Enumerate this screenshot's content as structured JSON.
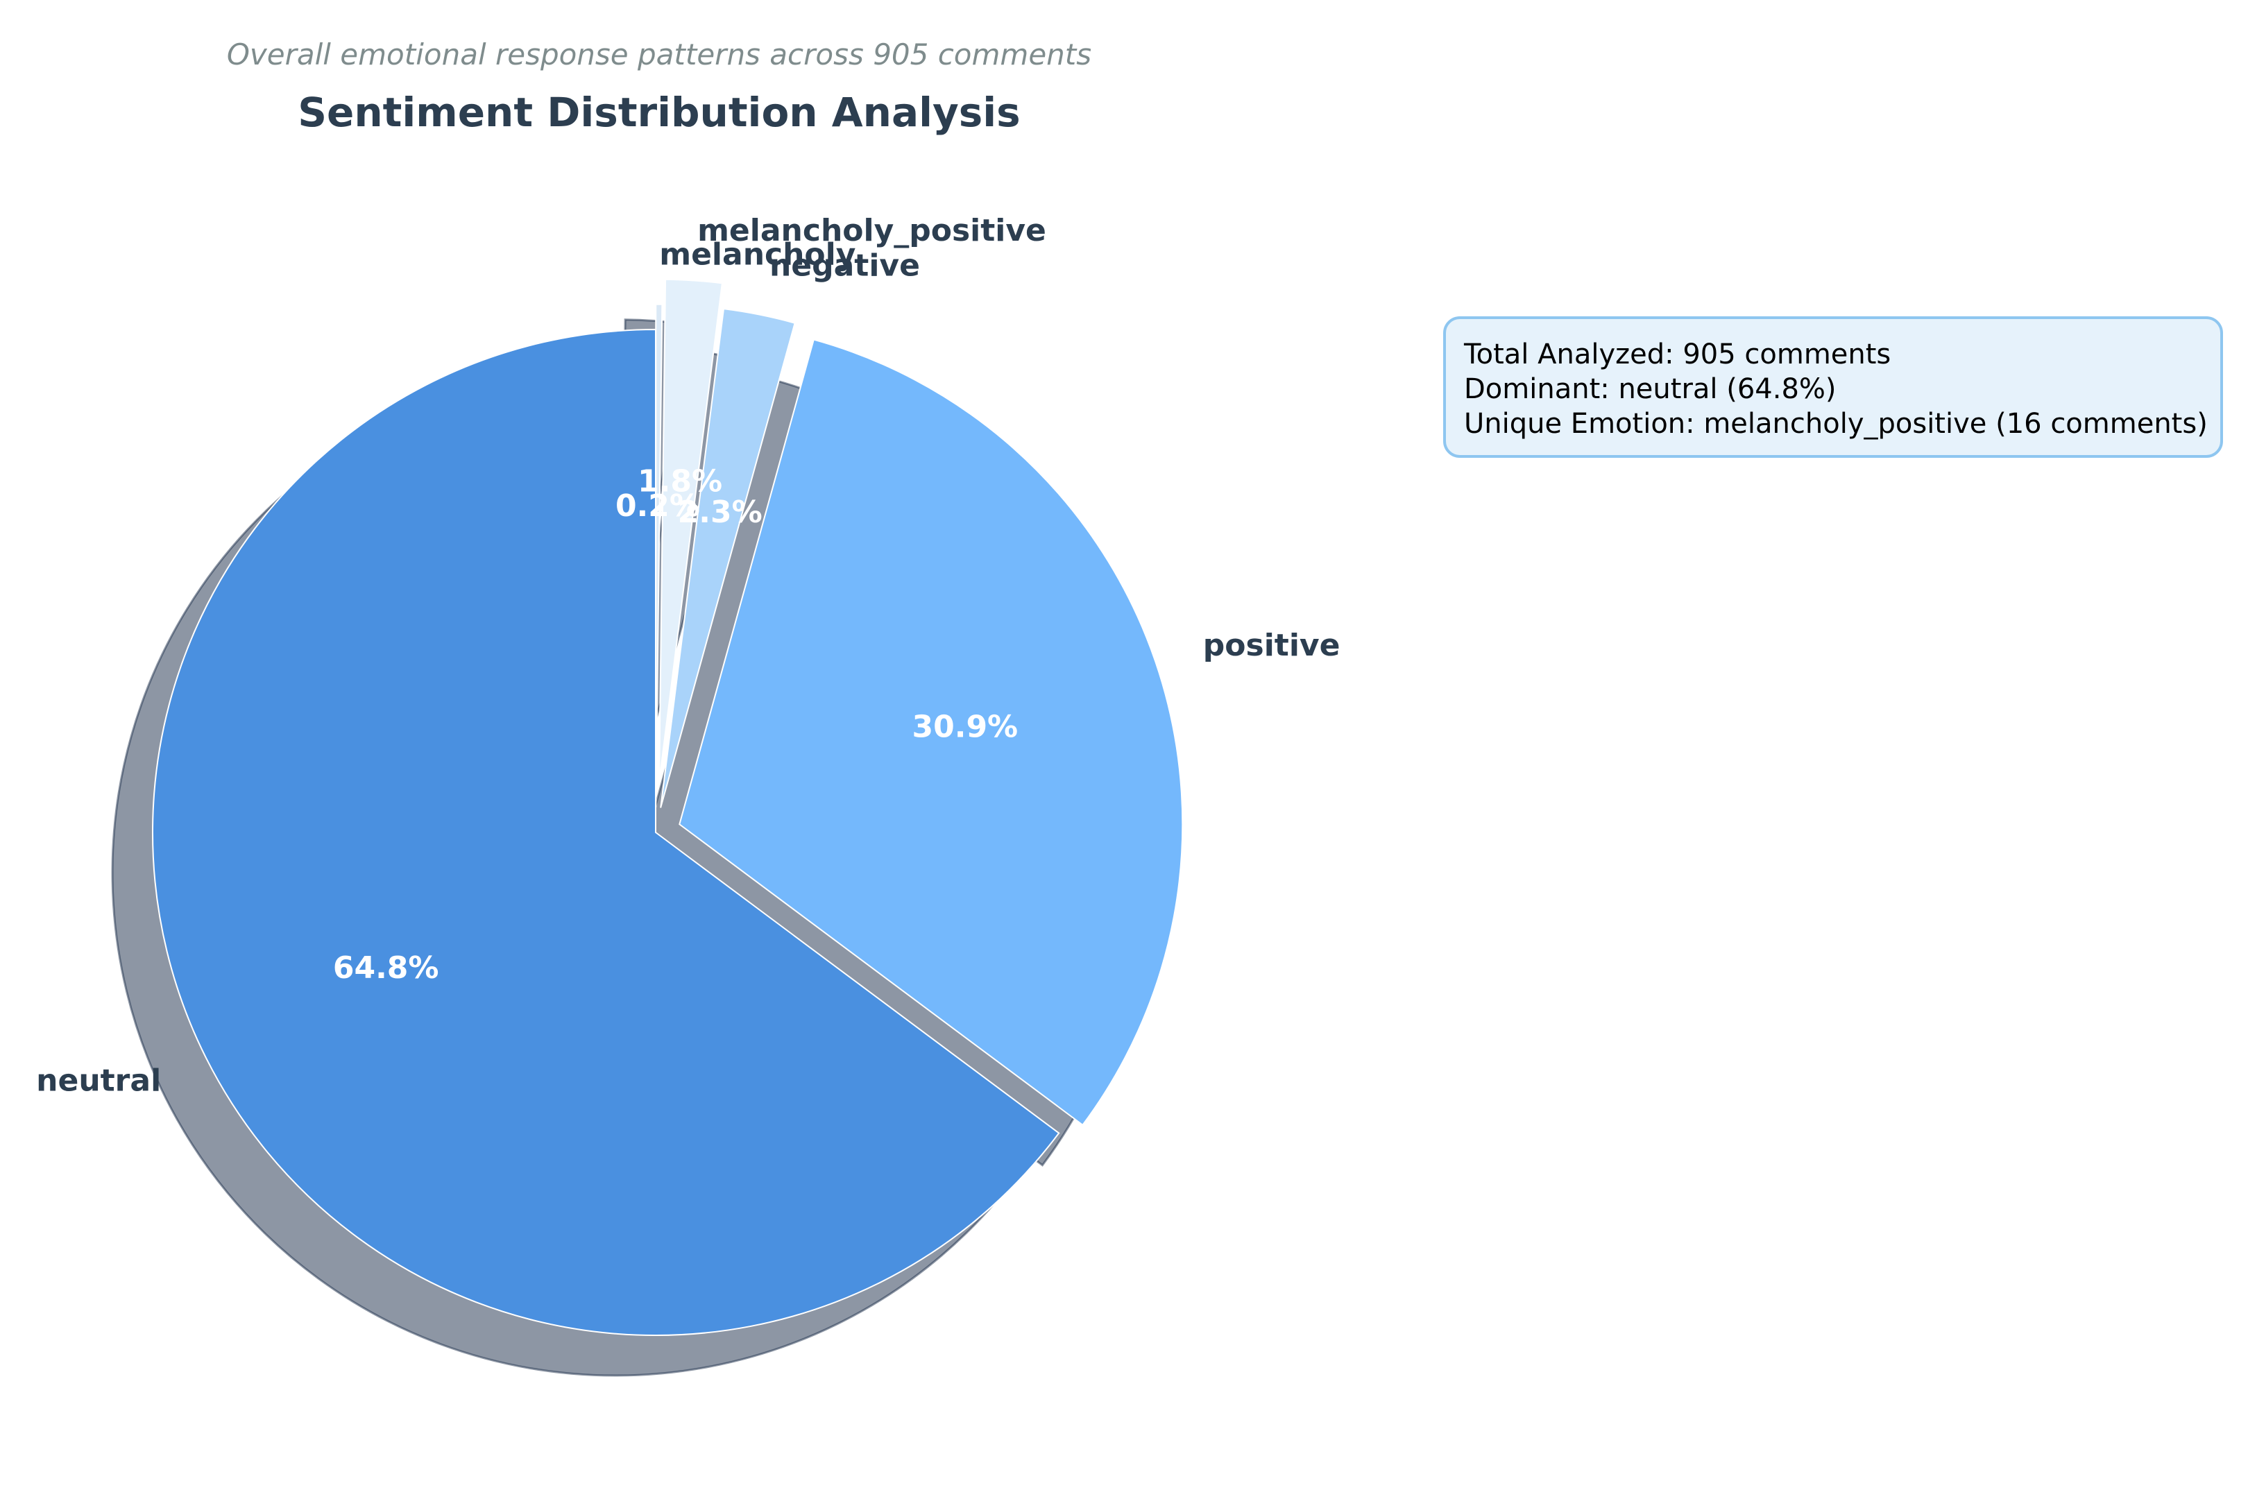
{
  "chart_data": {
    "type": "pie",
    "title": "Sentiment Distribution Analysis",
    "subtitle": "Overall emotional response patterns across 905 comments",
    "start_angle_deg": 90,
    "direction": "clockwise",
    "shadow": true,
    "slices": [
      {
        "label": "melancholy",
        "value": 0.2,
        "pct_label": "0.2%",
        "color": "#dbe9f6",
        "explode": 0.05
      },
      {
        "label": "melancholy_positive",
        "value": 1.8,
        "pct_label": "1.8%",
        "color": "#e3f0fb",
        "explode": 0.1
      },
      {
        "label": "negative",
        "value": 2.3,
        "pct_label": "2.3%",
        "color": "#a9d3fa",
        "explode": 0.05
      },
      {
        "label": "positive",
        "value": 30.9,
        "pct_label": "30.9%",
        "color": "#74b8fc",
        "explode": 0.05
      },
      {
        "label": "neutral",
        "value": 64.8,
        "pct_label": "64.8%",
        "color": "#4a90e0",
        "explode": 0
      }
    ]
  },
  "info_box": {
    "line1": "Total Analyzed: 905 comments",
    "line2": "Dominant: neutral (64.8%)",
    "line3": "Unique Emotion: melancholy_positive (16 comments)"
  }
}
